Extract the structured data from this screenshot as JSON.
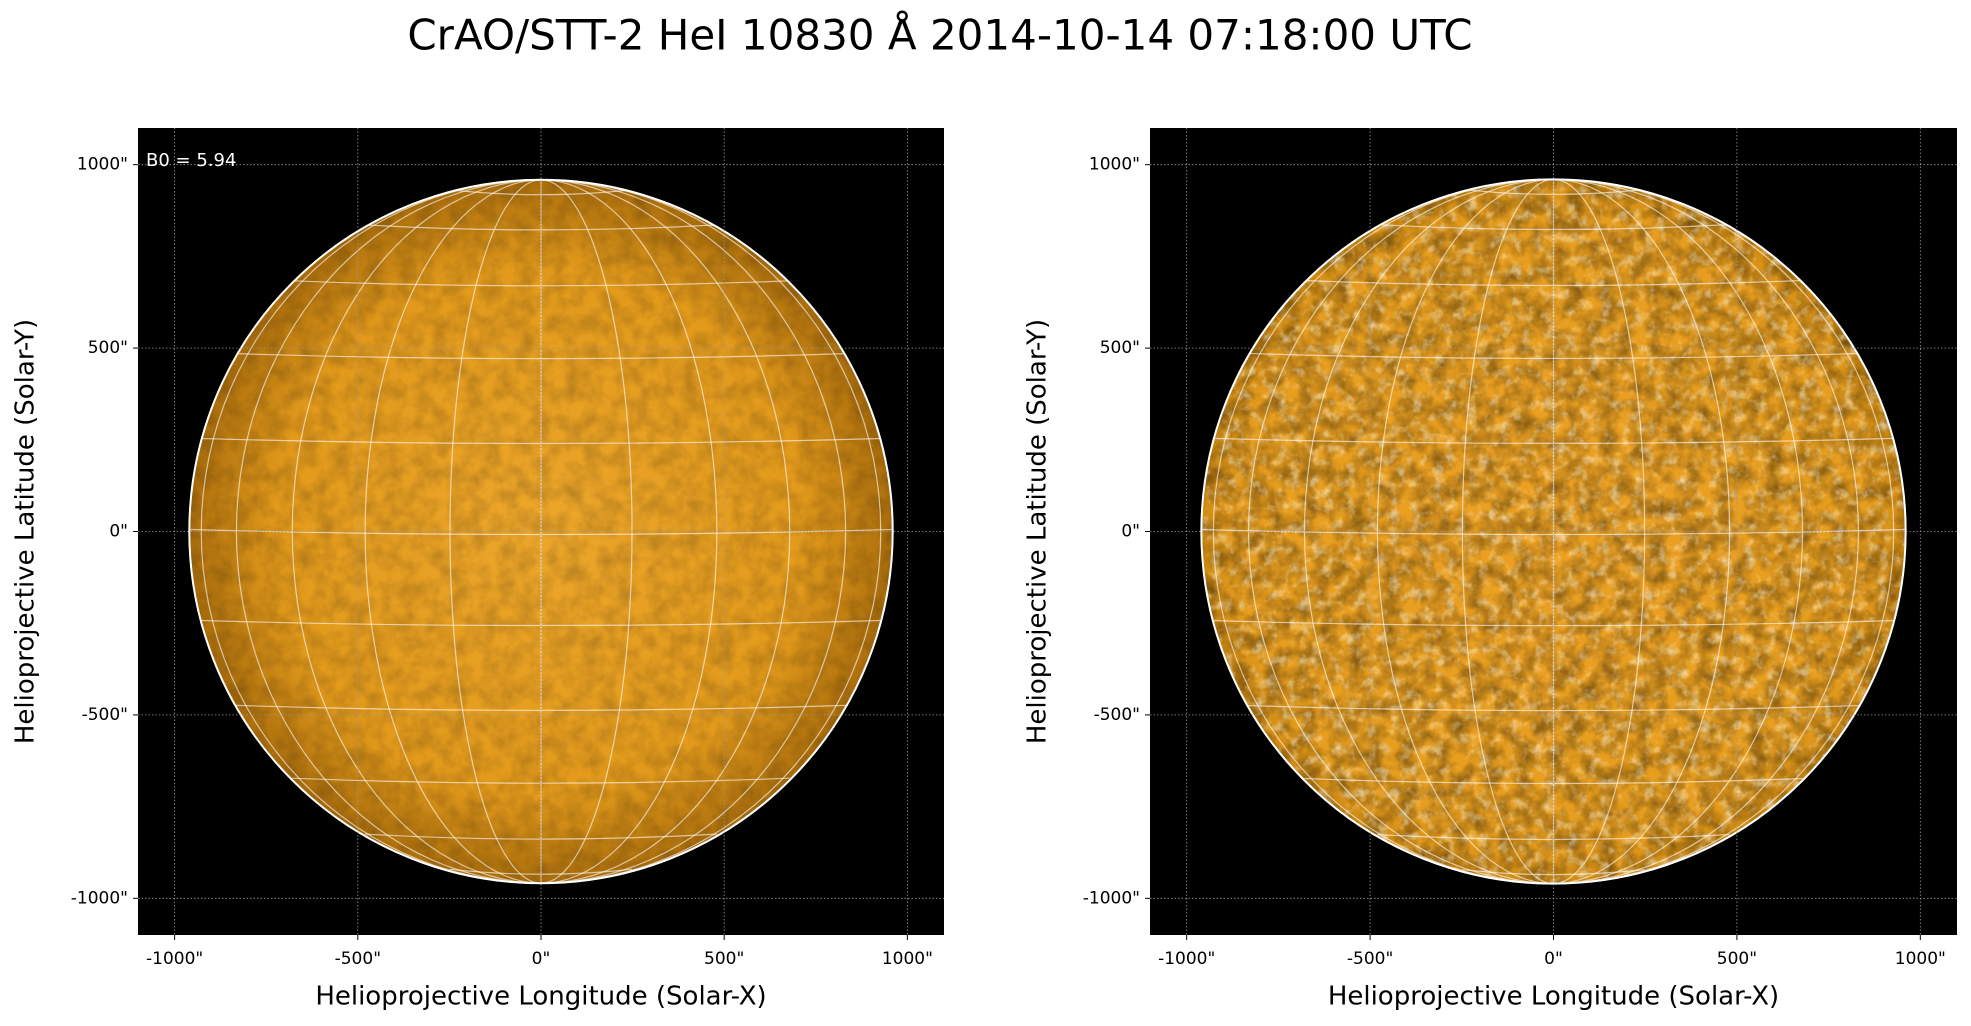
{
  "title": "CrAO/STT-2 HeI 10830 Å 2014-10-14 07:18:00 UTC",
  "chart_data": [
    {
      "type": "image",
      "xlabel": "Helioprojective Longitude (Solar-X)",
      "ylabel": "Helioprojective Latitude (Solar-Y)",
      "annotation": "B0 = 5.94",
      "xlim": [
        -1100,
        1100
      ],
      "ylim": [
        -1100,
        1100
      ],
      "xticks": [
        {
          "value": -1000,
          "label": "-1000\""
        },
        {
          "value": -500,
          "label": "-500\""
        },
        {
          "value": 0,
          "label": "0\""
        },
        {
          "value": 500,
          "label": "500\""
        },
        {
          "value": 1000,
          "label": "1000\""
        }
      ],
      "yticks": [
        {
          "value": -1000,
          "label": "-1000\""
        },
        {
          "value": -500,
          "label": "-500\""
        },
        {
          "value": 0,
          "label": "0\""
        },
        {
          "value": 500,
          "label": "500\""
        },
        {
          "value": 1000,
          "label": "1000\""
        }
      ],
      "grid": true,
      "disk_radius": 960,
      "color": "#e39a1c",
      "style": "smooth"
    },
    {
      "type": "image",
      "xlabel": "Helioprojective Longitude (Solar-X)",
      "ylabel": "Helioprojective Latitude (Solar-Y)",
      "xlim": [
        -1100,
        1100
      ],
      "ylim": [
        -1100,
        1100
      ],
      "xticks": [
        {
          "value": -1000,
          "label": "-1000\""
        },
        {
          "value": -500,
          "label": "-500\""
        },
        {
          "value": 0,
          "label": "0\""
        },
        {
          "value": 500,
          "label": "500\""
        },
        {
          "value": 1000,
          "label": "1000\""
        }
      ],
      "yticks": [
        {
          "value": -1000,
          "label": "-1000\""
        },
        {
          "value": -500,
          "label": "-500\""
        },
        {
          "value": 0,
          "label": "0\""
        },
        {
          "value": 500,
          "label": "500\""
        },
        {
          "value": 1000,
          "label": "1000\""
        }
      ],
      "grid": true,
      "disk_radius": 960,
      "color": "#e39a1c",
      "style": "enhanced"
    }
  ]
}
